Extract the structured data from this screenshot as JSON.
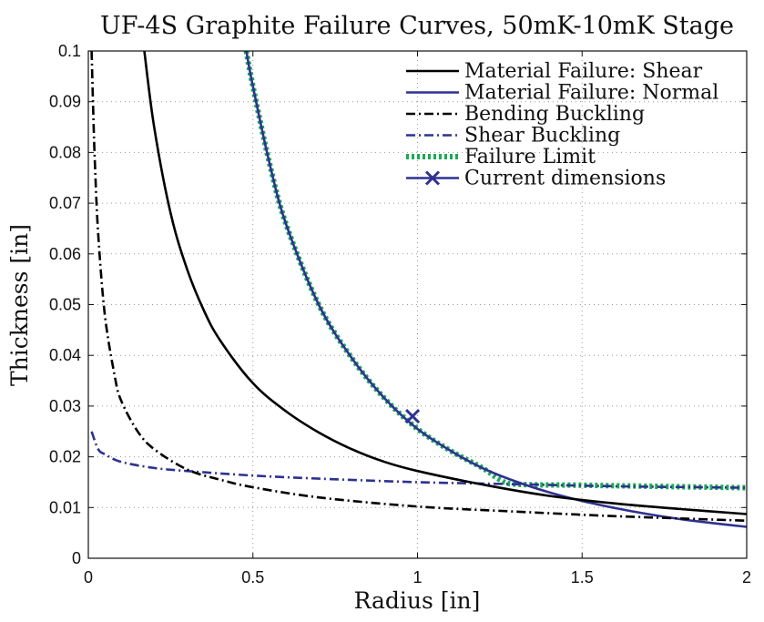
{
  "chart_data": {
    "type": "line",
    "title": "UF-4S Graphite Failure Curves, 50mK-10mK Stage",
    "xlabel": "Radius [in]",
    "ylabel": "Thickness [in]",
    "xlim": [
      0,
      2
    ],
    "ylim": [
      0,
      0.1
    ],
    "x_ticks": [
      0,
      0.5,
      1,
      1.5,
      2
    ],
    "x_tick_labels": [
      "0",
      "0.5",
      "1",
      "1.5",
      "2"
    ],
    "y_ticks": [
      0,
      0.01,
      0.02,
      0.03,
      0.04,
      0.05,
      0.06,
      0.07,
      0.08,
      0.09,
      0.1
    ],
    "y_tick_labels": [
      "0",
      "0.01",
      "0.02",
      "0.03",
      "0.04",
      "0.05",
      "0.06",
      "0.07",
      "0.08",
      "0.09",
      "0.1"
    ],
    "grid": true,
    "legend_position": "top-right",
    "series": [
      {
        "name": "Material Failure: Shear",
        "color": "#000000",
        "style": "solid",
        "x": [
          0.17,
          0.2,
          0.25,
          0.3,
          0.35,
          0.4,
          0.5,
          0.6,
          0.7,
          0.8,
          0.9,
          1.0,
          1.2,
          1.4,
          1.6,
          1.8,
          2.0
        ],
        "y": [
          0.1,
          0.085,
          0.068,
          0.057,
          0.049,
          0.043,
          0.0345,
          0.029,
          0.0248,
          0.0215,
          0.019,
          0.0172,
          0.0145,
          0.0123,
          0.0108,
          0.0097,
          0.0087
        ]
      },
      {
        "name": "Material Failure: Normal",
        "color": "#2e3192",
        "style": "solid",
        "x": [
          0.48,
          0.5,
          0.55,
          0.6,
          0.7,
          0.8,
          0.9,
          1.0,
          1.1,
          1.2,
          1.3,
          1.4,
          1.5,
          1.6,
          1.7,
          1.8,
          1.9,
          2.0
        ],
        "y": [
          0.1,
          0.093,
          0.078,
          0.066,
          0.05,
          0.0395,
          0.0315,
          0.0255,
          0.0212,
          0.0177,
          0.0151,
          0.013,
          0.0113,
          0.0099,
          0.0087,
          0.0077,
          0.0069,
          0.0062
        ]
      },
      {
        "name": "Bending Buckling",
        "color": "#000000",
        "style": "dashdot",
        "x": [
          0.01,
          0.015,
          0.02,
          0.03,
          0.05,
          0.08,
          0.1,
          0.15,
          0.2,
          0.3,
          0.4,
          0.5,
          0.7,
          1.0,
          1.3,
          1.6,
          2.0
        ],
        "y": [
          0.1,
          0.088,
          0.078,
          0.064,
          0.048,
          0.036,
          0.031,
          0.025,
          0.0215,
          0.0175,
          0.0155,
          0.014,
          0.012,
          0.0102,
          0.0092,
          0.0083,
          0.0074
        ]
      },
      {
        "name": "Shear Buckling",
        "color": "#2e3192",
        "style": "dashdot",
        "x": [
          0.01,
          0.03,
          0.05,
          0.1,
          0.2,
          0.3,
          0.5,
          0.7,
          1.0,
          1.3,
          1.6,
          2.0
        ],
        "y": [
          0.025,
          0.0215,
          0.0205,
          0.019,
          0.0178,
          0.0172,
          0.0163,
          0.0157,
          0.015,
          0.0146,
          0.0142,
          0.0139
        ]
      },
      {
        "name": "Failure Limit",
        "color": "#1aaa55",
        "style": "dotted",
        "x": [
          0.48,
          0.5,
          0.55,
          0.6,
          0.7,
          0.8,
          0.9,
          1.0,
          1.1,
          1.2,
          1.25,
          1.3,
          1.5,
          1.7,
          2.0
        ],
        "y": [
          0.1,
          0.093,
          0.078,
          0.066,
          0.05,
          0.0395,
          0.0315,
          0.0255,
          0.0212,
          0.0177,
          0.0155,
          0.0146,
          0.0144,
          0.0142,
          0.0139
        ]
      },
      {
        "name": "Current dimensions",
        "color": "#2e3192",
        "style": "marker-x",
        "x": [
          0.985
        ],
        "y": [
          0.028
        ]
      }
    ]
  }
}
